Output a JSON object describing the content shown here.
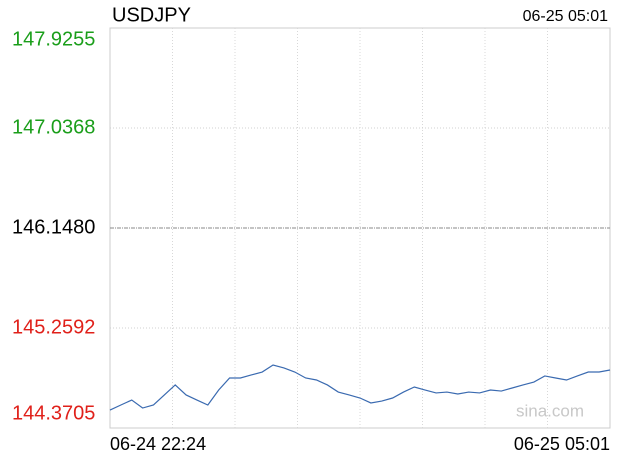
{
  "chart_data": {
    "type": "line",
    "title": "USDJPY",
    "timestamp": "06-25 05:01",
    "watermark": "sina.com",
    "x_labels": [
      "06-24 22:24",
      "06-25 05:01"
    ],
    "x_grid_divisions": 8,
    "ylim": [
      144.3705,
      147.9255
    ],
    "yticks": [
      {
        "value": 147.9255,
        "label": "147.9255"
      },
      {
        "value": 147.0368,
        "label": "147.0368"
      },
      {
        "value": 146.148,
        "label": "146.1480"
      },
      {
        "value": 145.2592,
        "label": "145.2592"
      },
      {
        "value": 144.3705,
        "label": "144.3705"
      }
    ],
    "ytick_colors": [
      "#1a9e1a",
      "#1a9e1a",
      "#000000",
      "#e0201a",
      "#e0201a"
    ],
    "grid": true,
    "color": "#3a6ab0",
    "values": [
      144.53,
      144.575,
      144.619,
      144.548,
      144.575,
      144.664,
      144.753,
      144.664,
      144.619,
      144.575,
      144.708,
      144.815,
      144.815,
      144.842,
      144.868,
      144.93,
      144.904,
      144.868,
      144.815,
      144.797,
      144.753,
      144.69,
      144.664,
      144.637,
      144.593,
      144.61,
      144.637,
      144.69,
      144.735,
      144.708,
      144.682,
      144.69,
      144.673,
      144.69,
      144.682,
      144.708,
      144.699,
      144.726,
      144.753,
      144.779,
      144.833,
      144.815,
      144.797,
      144.833,
      144.868,
      144.868,
      144.886
    ]
  }
}
